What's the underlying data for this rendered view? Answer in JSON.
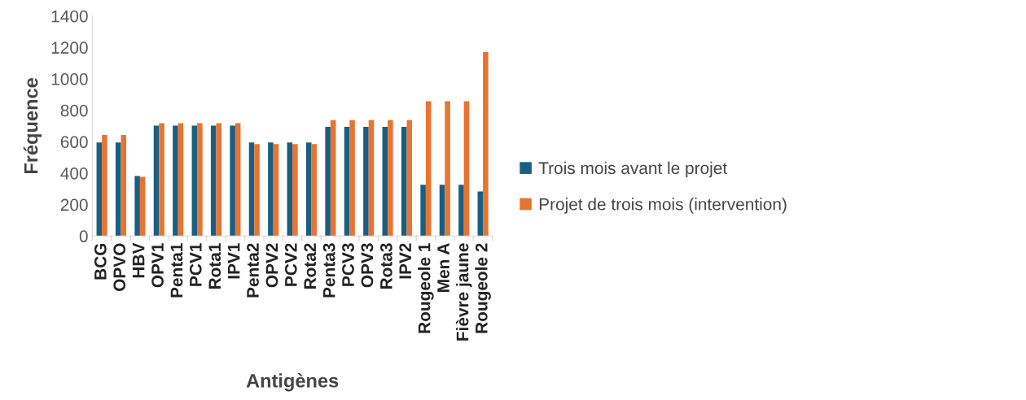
{
  "chart_data": {
    "type": "bar",
    "xlabel": "Antigènes",
    "ylabel": "Fréquence",
    "categories": [
      "BCG",
      "OPVO",
      "HBV",
      "OPV1",
      "Penta1",
      "PCV1",
      "Rota1",
      "IPV1",
      "Penta2",
      "OPV2",
      "PCV2",
      "Rota2",
      "Penta3",
      "PCV3",
      "OPV3",
      "Rota3",
      "IPV2",
      "Rougeole 1",
      "Men A",
      "Fièvre jaune",
      "Rougeole 2"
    ],
    "series": [
      {
        "name": "Trois mois avant le projet",
        "color": "#1a5e80",
        "values": [
          595,
          595,
          382,
          703,
          703,
          703,
          703,
          703,
          595,
          595,
          595,
          595,
          695,
          695,
          695,
          695,
          695,
          326,
          326,
          326,
          283
        ]
      },
      {
        "name": "Projet de trois mois (intervention)",
        "color": "#e87432",
        "values": [
          643,
          643,
          377,
          718,
          718,
          718,
          718,
          718,
          585,
          585,
          585,
          585,
          738,
          738,
          738,
          738,
          738,
          858,
          858,
          858,
          1171
        ]
      }
    ],
    "ylim": [
      0,
      1400
    ],
    "yticks": [
      0,
      200,
      400,
      600,
      800,
      1000,
      1200,
      1400
    ],
    "grid": false,
    "legend": "right"
  }
}
